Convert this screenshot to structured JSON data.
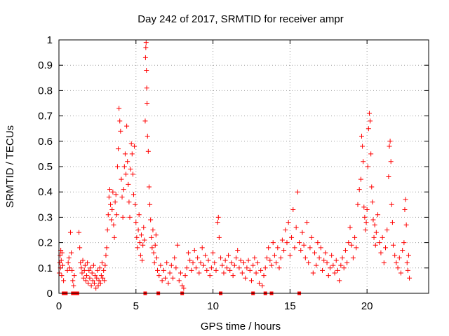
{
  "chart_data": {
    "type": "scatter",
    "title": "Day 242 of 2017, SRMTID for receiver ampr",
    "xlabel": "GPS time / hours",
    "ylabel": "SRMTID / TECUs",
    "xlim": [
      0,
      24
    ],
    "ylim": [
      0,
      1
    ],
    "xticks": [
      0,
      5,
      10,
      15,
      20
    ],
    "yticks": [
      0,
      0.1,
      0.2,
      0.3,
      0.4,
      0.5,
      0.6,
      0.7,
      0.8,
      0.9,
      1
    ],
    "xtick_labels": [
      "0",
      "5",
      "10",
      "15",
      "20"
    ],
    "ytick_labels": [
      "0",
      "0.1",
      "0.2",
      "0.3",
      "0.4",
      "0.5",
      "0.6",
      "0.7",
      "0.8",
      "0.9",
      "1"
    ],
    "grid": true,
    "grid_style": "dotted",
    "marker": "plus",
    "color": "#ff0000",
    "baseline_markers": [
      0.3,
      0.45,
      0.9,
      1.05,
      1.2,
      5.6,
      6.45,
      8.0,
      10.5,
      12.6,
      13.4,
      13.8,
      15.6
    ],
    "series": [
      {
        "values": [
          [
            0.02,
            0.08
          ],
          [
            0.05,
            0.12
          ],
          [
            0.08,
            0.15
          ],
          [
            0.1,
            0.1
          ],
          [
            0.12,
            0.17
          ],
          [
            0.15,
            0.13
          ],
          [
            0.18,
            0.07
          ],
          [
            0.2,
            0.16
          ],
          [
            0.25,
            0.11
          ],
          [
            0.3,
            0.05
          ],
          [
            0.55,
            0.09
          ],
          [
            0.6,
            0.12
          ],
          [
            0.65,
            0.14
          ],
          [
            0.7,
            0.1
          ],
          [
            0.75,
            0.24
          ],
          [
            0.8,
            0.16
          ],
          [
            0.85,
            0.09
          ],
          [
            0.9,
            0.05
          ],
          [
            0.95,
            0.03
          ],
          [
            1.0,
            0.07
          ],
          [
            1.3,
            0.24
          ],
          [
            1.35,
            0.18
          ],
          [
            1.4,
            0.12
          ],
          [
            1.45,
            0.1
          ],
          [
            1.5,
            0.08
          ],
          [
            1.55,
            0.13
          ],
          [
            1.6,
            0.06
          ],
          [
            1.65,
            0.09
          ],
          [
            1.7,
            0.11
          ],
          [
            1.75,
            0.05
          ],
          [
            1.8,
            0.07
          ],
          [
            1.85,
            0.12
          ],
          [
            1.9,
            0.04
          ],
          [
            1.95,
            0.09
          ],
          [
            2.0,
            0.06
          ],
          [
            2.05,
            0.1
          ],
          [
            2.1,
            0.03
          ],
          [
            2.15,
            0.08
          ],
          [
            2.2,
            0.05
          ],
          [
            2.25,
            0.11
          ],
          [
            2.3,
            0.04
          ],
          [
            2.35,
            0.07
          ],
          [
            2.4,
            0.02
          ],
          [
            2.45,
            0.06
          ],
          [
            2.5,
            0.09
          ],
          [
            2.55,
            0.03
          ],
          [
            2.6,
            0.05
          ],
          [
            2.65,
            0.1
          ],
          [
            2.7,
            0.04
          ],
          [
            2.75,
            0.07
          ],
          [
            2.8,
            0.12
          ],
          [
            2.85,
            0.06
          ],
          [
            2.9,
            0.09
          ],
          [
            2.95,
            0.05
          ],
          [
            3.0,
            0.11
          ],
          [
            3.05,
            0.15
          ],
          [
            3.1,
            0.18
          ],
          [
            3.15,
            0.25
          ],
          [
            3.2,
            0.31
          ],
          [
            3.25,
            0.38
          ],
          [
            3.3,
            0.41
          ],
          [
            3.35,
            0.35
          ],
          [
            3.4,
            0.29
          ],
          [
            3.45,
            0.33
          ],
          [
            3.5,
            0.4
          ],
          [
            3.55,
            0.27
          ],
          [
            3.6,
            0.22
          ],
          [
            3.65,
            0.36
          ],
          [
            3.7,
            0.39
          ],
          [
            3.75,
            0.31
          ],
          [
            3.8,
            0.5
          ],
          [
            3.85,
            0.57
          ],
          [
            3.9,
            0.73
          ],
          [
            3.95,
            0.68
          ],
          [
            4.0,
            0.64
          ],
          [
            4.05,
            0.45
          ],
          [
            4.1,
            0.38
          ],
          [
            4.15,
            0.3
          ],
          [
            4.2,
            0.41
          ],
          [
            4.25,
            0.5
          ],
          [
            4.3,
            0.55
          ],
          [
            4.35,
            0.47
          ],
          [
            4.4,
            0.66
          ],
          [
            4.45,
            0.52
          ],
          [
            4.5,
            0.43
          ],
          [
            4.55,
            0.36
          ],
          [
            4.6,
            0.3
          ],
          [
            4.65,
            0.49
          ],
          [
            4.7,
            0.59
          ],
          [
            4.75,
            0.55
          ],
          [
            4.8,
            0.47
          ],
          [
            4.85,
            0.39
          ],
          [
            4.9,
            0.58
          ],
          [
            4.95,
            0.35
          ],
          [
            5.0,
            0.28
          ],
          [
            5.05,
            0.22
          ],
          [
            5.1,
            0.18
          ],
          [
            5.15,
            0.25
          ],
          [
            5.2,
            0.31
          ],
          [
            5.25,
            0.2
          ],
          [
            5.3,
            0.15
          ],
          [
            5.35,
            0.23
          ],
          [
            5.4,
            0.13
          ],
          [
            5.45,
            0.19
          ],
          [
            5.5,
            0.26
          ],
          [
            5.55,
            0.21
          ],
          [
            5.6,
            0.68
          ],
          [
            5.62,
            0.93
          ],
          [
            5.64,
            0.97
          ],
          [
            5.66,
            0.99
          ],
          [
            5.68,
            0.88
          ],
          [
            5.7,
            0.81
          ],
          [
            5.72,
            0.75
          ],
          [
            5.75,
            0.62
          ],
          [
            5.8,
            0.56
          ],
          [
            5.85,
            0.42
          ],
          [
            5.9,
            0.35
          ],
          [
            5.95,
            0.29
          ],
          [
            6.0,
            0.22
          ],
          [
            6.05,
            0.18
          ],
          [
            6.1,
            0.25
          ],
          [
            6.15,
            0.16
          ],
          [
            6.2,
            0.12
          ],
          [
            6.25,
            0.19
          ],
          [
            6.3,
            0.23
          ],
          [
            6.35,
            0.14
          ],
          [
            6.4,
            0.09
          ],
          [
            6.5,
            0.07
          ],
          [
            6.6,
            0.11
          ],
          [
            6.7,
            0.05
          ],
          [
            6.8,
            0.09
          ],
          [
            6.9,
            0.06
          ],
          [
            7.0,
            0.12
          ],
          [
            7.1,
            0.04
          ],
          [
            7.2,
            0.08
          ],
          [
            7.3,
            0.11
          ],
          [
            7.4,
            0.06
          ],
          [
            7.5,
            0.14
          ],
          [
            7.6,
            0.1
          ],
          [
            7.7,
            0.19
          ],
          [
            7.8,
            0.05
          ],
          [
            7.9,
            0.08
          ],
          [
            8.0,
            0.03
          ],
          [
            8.1,
            0.02
          ],
          [
            8.2,
            0.07
          ],
          [
            8.3,
            0.1
          ],
          [
            8.4,
            0.16
          ],
          [
            8.5,
            0.13
          ],
          [
            8.6,
            0.09
          ],
          [
            8.7,
            0.12
          ],
          [
            8.8,
            0.17
          ],
          [
            8.9,
            0.1
          ],
          [
            9.0,
            0.14
          ],
          [
            9.1,
            0.08
          ],
          [
            9.2,
            0.12
          ],
          [
            9.3,
            0.18
          ],
          [
            9.4,
            0.11
          ],
          [
            9.5,
            0.15
          ],
          [
            9.6,
            0.09
          ],
          [
            9.7,
            0.13
          ],
          [
            9.8,
            0.07
          ],
          [
            9.9,
            0.1
          ],
          [
            10.0,
            0.16
          ],
          [
            10.1,
            0.12
          ],
          [
            10.2,
            0.09
          ],
          [
            10.3,
            0.28
          ],
          [
            10.35,
            0.3
          ],
          [
            10.4,
            0.22
          ],
          [
            10.5,
            0.14
          ],
          [
            10.6,
            0.11
          ],
          [
            10.7,
            0.08
          ],
          [
            10.8,
            0.13
          ],
          [
            10.9,
            0.1
          ],
          [
            11.0,
            0.15
          ],
          [
            11.1,
            0.09
          ],
          [
            11.2,
            0.12
          ],
          [
            11.3,
            0.07
          ],
          [
            11.4,
            0.11
          ],
          [
            11.5,
            0.14
          ],
          [
            11.6,
            0.17
          ],
          [
            11.7,
            0.1
          ],
          [
            11.8,
            0.13
          ],
          [
            11.9,
            0.08
          ],
          [
            12.0,
            0.12
          ],
          [
            12.1,
            0.06
          ],
          [
            12.2,
            0.1
          ],
          [
            12.3,
            0.13
          ],
          [
            12.4,
            0.09
          ],
          [
            12.5,
            0.05
          ],
          [
            12.6,
            0.11
          ],
          [
            12.7,
            0.14
          ],
          [
            12.8,
            0.08
          ],
          [
            12.9,
            0.12
          ],
          [
            13.0,
            0.04
          ],
          [
            13.1,
            0.09
          ],
          [
            13.2,
            0.03
          ],
          [
            13.3,
            0.07
          ],
          [
            13.4,
            0.1
          ],
          [
            13.5,
            0.14
          ],
          [
            13.6,
            0.18
          ],
          [
            13.7,
            0.13
          ],
          [
            13.8,
            0.11
          ],
          [
            13.9,
            0.2
          ],
          [
            14.0,
            0.15
          ],
          [
            14.1,
            0.12
          ],
          [
            14.2,
            0.18
          ],
          [
            14.3,
            0.1
          ],
          [
            14.4,
            0.14
          ],
          [
            14.5,
            0.21
          ],
          [
            14.6,
            0.17
          ],
          [
            14.7,
            0.25
          ],
          [
            14.8,
            0.2
          ],
          [
            14.9,
            0.28
          ],
          [
            15.0,
            0.15
          ],
          [
            15.1,
            0.22
          ],
          [
            15.2,
            0.33
          ],
          [
            15.3,
            0.18
          ],
          [
            15.4,
            0.26
          ],
          [
            15.5,
            0.4
          ],
          [
            15.6,
            0.2
          ],
          [
            15.7,
            0.17
          ],
          [
            15.8,
            0.24
          ],
          [
            15.9,
            0.19
          ],
          [
            16.0,
            0.14
          ],
          [
            16.1,
            0.28
          ],
          [
            16.2,
            0.12
          ],
          [
            16.3,
            0.18
          ],
          [
            16.4,
            0.22
          ],
          [
            16.5,
            0.08
          ],
          [
            16.6,
            0.16
          ],
          [
            16.7,
            0.11
          ],
          [
            16.8,
            0.2
          ],
          [
            16.9,
            0.14
          ],
          [
            17.0,
            0.18
          ],
          [
            17.1,
            0.09
          ],
          [
            17.2,
            0.13
          ],
          [
            17.3,
            0.16
          ],
          [
            17.4,
            0.12
          ],
          [
            17.5,
            0.07
          ],
          [
            17.6,
            0.1
          ],
          [
            17.7,
            0.15
          ],
          [
            17.8,
            0.11
          ],
          [
            17.9,
            0.08
          ],
          [
            18.0,
            0.13
          ],
          [
            18.1,
            0.09
          ],
          [
            18.2,
            0.05
          ],
          [
            18.3,
            0.11
          ],
          [
            18.4,
            0.14
          ],
          [
            18.5,
            0.1
          ],
          [
            18.6,
            0.17
          ],
          [
            18.7,
            0.12
          ],
          [
            18.8,
            0.2
          ],
          [
            18.9,
            0.26
          ],
          [
            19.0,
            0.19
          ],
          [
            19.1,
            0.14
          ],
          [
            19.2,
            0.22
          ],
          [
            19.3,
            0.18
          ],
          [
            19.4,
            0.35
          ],
          [
            19.5,
            0.41
          ],
          [
            19.6,
            0.45
          ],
          [
            19.65,
            0.62
          ],
          [
            19.7,
            0.58
          ],
          [
            19.75,
            0.52
          ],
          [
            19.8,
            0.34
          ],
          [
            19.85,
            0.3
          ],
          [
            19.9,
            0.25
          ],
          [
            19.95,
            0.28
          ],
          [
            20.0,
            0.33
          ],
          [
            20.05,
            0.5
          ],
          [
            20.1,
            0.65
          ],
          [
            20.15,
            0.71
          ],
          [
            20.2,
            0.68
          ],
          [
            20.25,
            0.55
          ],
          [
            20.3,
            0.42
          ],
          [
            20.35,
            0.36
          ],
          [
            20.4,
            0.29
          ],
          [
            20.45,
            0.22
          ],
          [
            20.5,
            0.27
          ],
          [
            20.55,
            0.19
          ],
          [
            20.6,
            0.24
          ],
          [
            20.7,
            0.31
          ],
          [
            20.8,
            0.2
          ],
          [
            20.9,
            0.16
          ],
          [
            21.0,
            0.22
          ],
          [
            21.1,
            0.12
          ],
          [
            21.2,
            0.18
          ],
          [
            21.3,
            0.25
          ],
          [
            21.4,
            0.46
          ],
          [
            21.45,
            0.58
          ],
          [
            21.5,
            0.6
          ],
          [
            21.55,
            0.52
          ],
          [
            21.6,
            0.35
          ],
          [
            21.65,
            0.28
          ],
          [
            21.7,
            0.19
          ],
          [
            21.8,
            0.15
          ],
          [
            21.9,
            0.12
          ],
          [
            22.0,
            0.1
          ],
          [
            22.1,
            0.14
          ],
          [
            22.2,
            0.08
          ],
          [
            22.3,
            0.17
          ],
          [
            22.4,
            0.2
          ],
          [
            22.45,
            0.33
          ],
          [
            22.5,
            0.37
          ],
          [
            22.55,
            0.27
          ],
          [
            22.6,
            0.12
          ],
          [
            22.65,
            0.09
          ],
          [
            22.7,
            0.15
          ],
          [
            22.75,
            0.06
          ]
        ]
      }
    ]
  }
}
